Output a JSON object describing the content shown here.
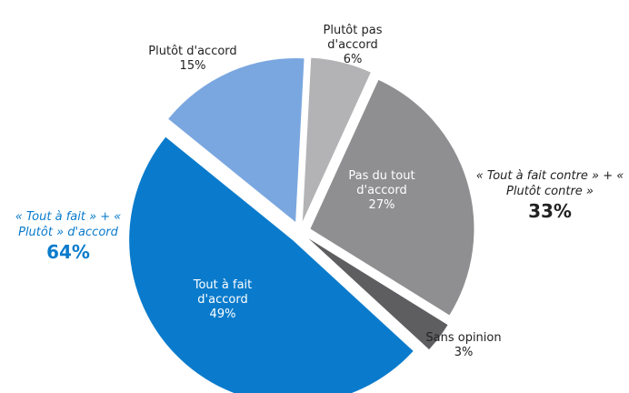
{
  "chart_data": {
    "type": "pie",
    "labels": [
      "Plutôt pas d'accord",
      "Pas du tout d'accord",
      "Sans opinion",
      "Tout à fait d'accord",
      "Plutôt d'accord"
    ],
    "values": [
      6,
      27,
      3,
      49,
      15
    ],
    "value_labels": [
      "6%",
      "27%",
      "3%",
      "49%",
      "15%"
    ],
    "colors": [
      "#b3b3b5",
      "#8f8f91",
      "#5e5e61",
      "#0a7bcc",
      "#7aa7df"
    ],
    "annotations": [
      {
        "text": "« Tout à fait » + « Plutôt » d'accord",
        "total": "64%",
        "color": "#0a7bcc"
      },
      {
        "text": "« Tout à fait contre » + « Plutôt contre »",
        "total": "33%",
        "color": "#222222"
      }
    ]
  }
}
